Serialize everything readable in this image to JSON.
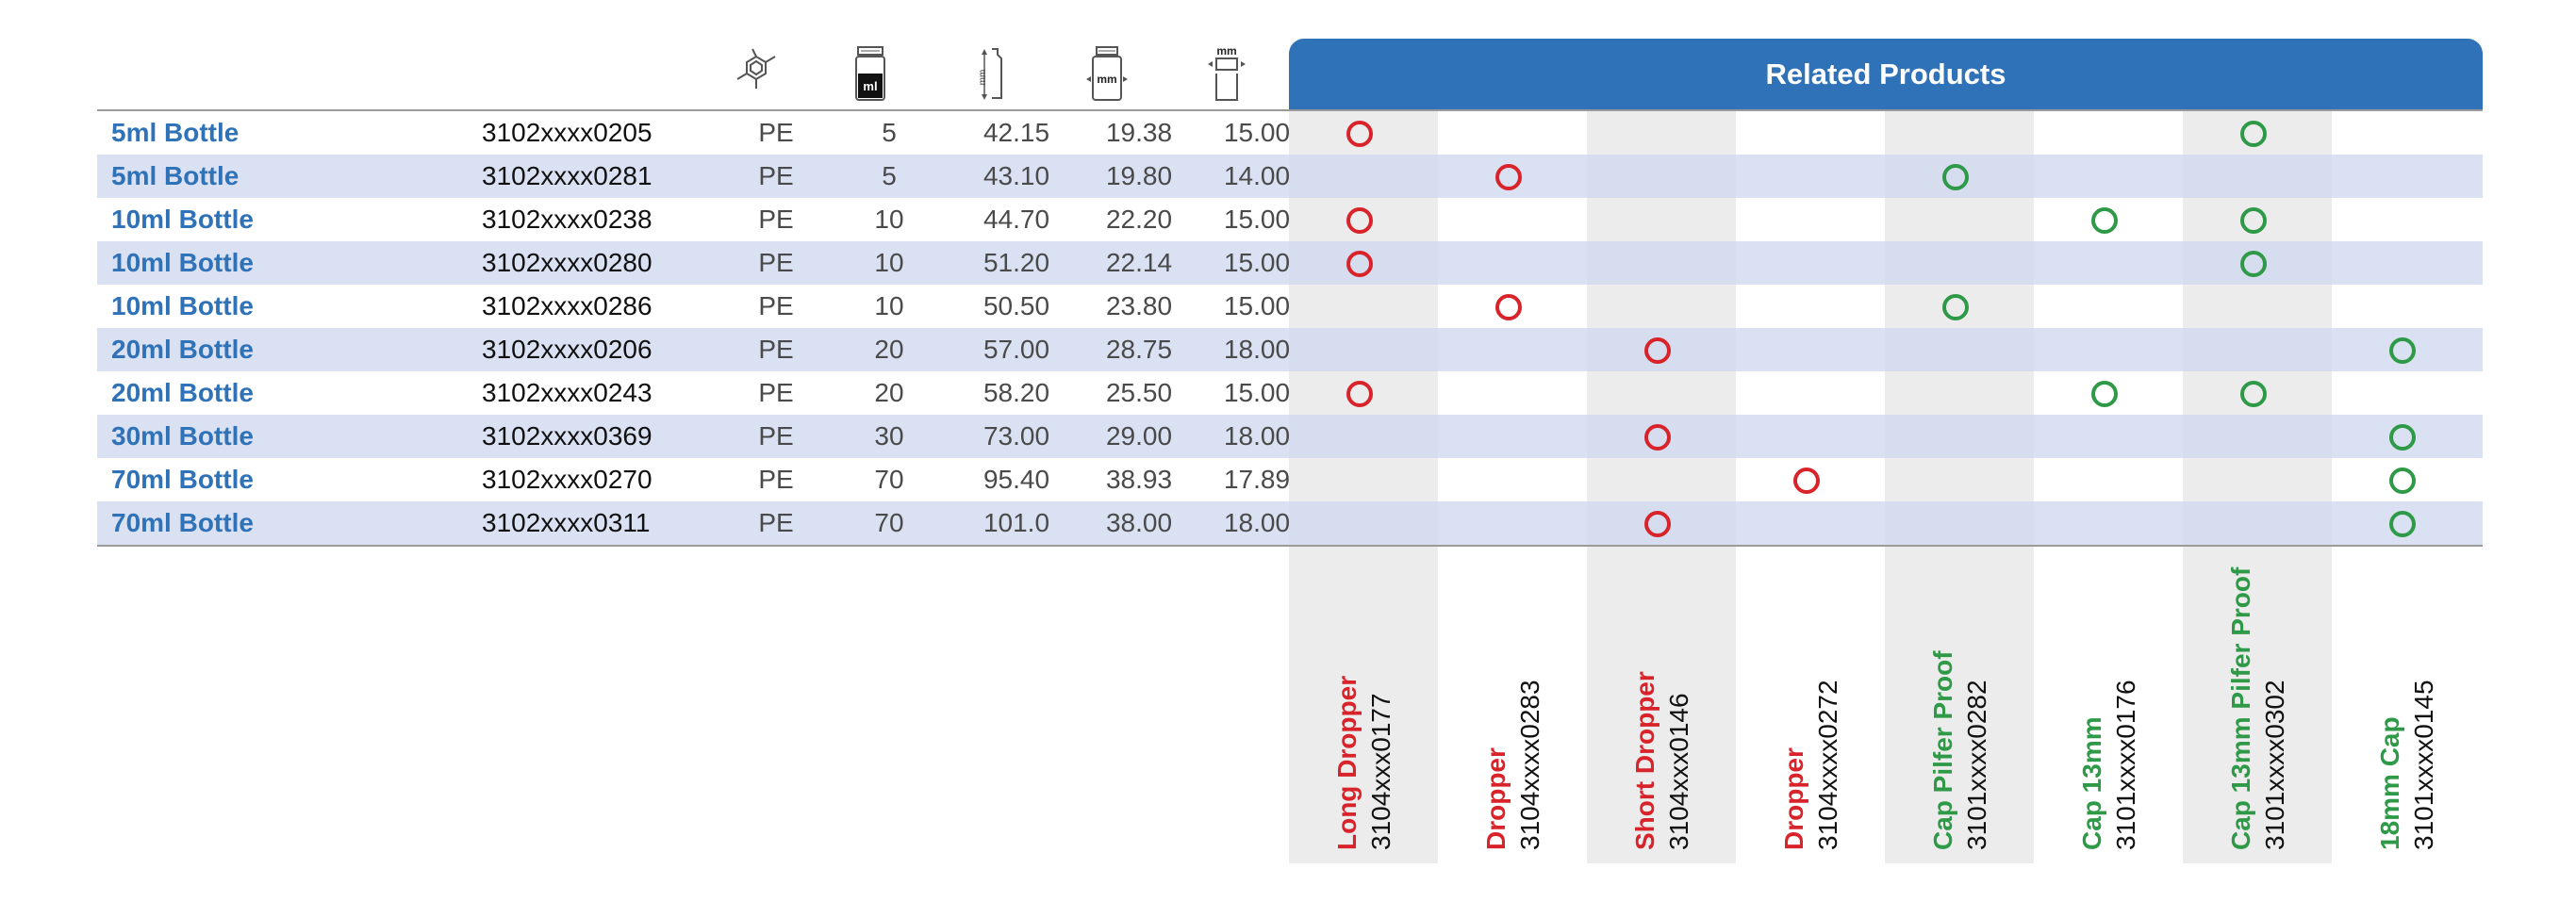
{
  "related_header": "Related Products",
  "header_icons": [
    {
      "icon": "material-molecule-icon"
    },
    {
      "icon": "volume-ml-icon",
      "text": "ml"
    },
    {
      "icon": "height-mm-icon",
      "text": "mm"
    },
    {
      "icon": "diameter-mm-icon",
      "text": "mm"
    },
    {
      "icon": "neck-mm-icon",
      "text": "mm"
    }
  ],
  "related_products": [
    {
      "name": "Long Dropper",
      "code": "3104xxx0177",
      "color": "#d9232a"
    },
    {
      "name": "Dropper",
      "code": "3104xxxx0283",
      "color": "#d9232a"
    },
    {
      "name": "Short Dropper",
      "code": "3104xxx0146",
      "color": "#d9232a"
    },
    {
      "name": "Dropper",
      "code": "3104xxxx0272",
      "color": "#d9232a"
    },
    {
      "name": "Cap Pilfer Proof",
      "code": "3101xxxx0282",
      "color": "#2e9a47"
    },
    {
      "name": "Cap 13mm",
      "code": "3101xxxx0176",
      "color": "#2e9a47"
    },
    {
      "name": "Cap 13mm Pilfer Proof",
      "code": "3101xxxx0302",
      "color": "#2e9a47"
    },
    {
      "name": "18mm Cap",
      "code": "3101xxxx0145",
      "color": "#2e9a47"
    }
  ],
  "rows": [
    {
      "name": "5ml Bottle",
      "code": "3102xxxx0205",
      "material": "PE",
      "volume": "5",
      "height": "42.15",
      "diameter": "19.38",
      "neck": "15.00",
      "related": [
        0,
        6
      ]
    },
    {
      "name": "5ml Bottle",
      "code": "3102xxxx0281",
      "material": "PE",
      "volume": "5",
      "height": "43.10",
      "diameter": "19.80",
      "neck": "14.00",
      "related": [
        1,
        4
      ]
    },
    {
      "name": "10ml Bottle",
      "code": "3102xxxx0238",
      "material": "PE",
      "volume": "10",
      "height": "44.70",
      "diameter": "22.20",
      "neck": "15.00",
      "related": [
        0,
        5,
        6
      ]
    },
    {
      "name": "10ml Bottle",
      "code": "3102xxxx0280",
      "material": "PE",
      "volume": "10",
      "height": "51.20",
      "diameter": "22.14",
      "neck": "15.00",
      "related": [
        0,
        6
      ]
    },
    {
      "name": "10ml Bottle",
      "code": "3102xxxx0286",
      "material": "PE",
      "volume": "10",
      "height": "50.50",
      "diameter": "23.80",
      "neck": "15.00",
      "related": [
        1,
        4
      ]
    },
    {
      "name": "20ml Bottle",
      "code": "3102xxxx0206",
      "material": "PE",
      "volume": "20",
      "height": "57.00",
      "diameter": "28.75",
      "neck": "18.00",
      "related": [
        2,
        7
      ]
    },
    {
      "name": "20ml Bottle",
      "code": "3102xxxx0243",
      "material": "PE",
      "volume": "20",
      "height": "58.20",
      "diameter": "25.50",
      "neck": "15.00",
      "related": [
        0,
        5,
        6
      ]
    },
    {
      "name": "30ml Bottle",
      "code": "3102xxxx0369",
      "material": "PE",
      "volume": "30",
      "height": "73.00",
      "diameter": "29.00",
      "neck": "18.00",
      "related": [
        2,
        7
      ]
    },
    {
      "name": "70ml Bottle",
      "code": "3102xxxx0270",
      "material": "PE",
      "volume": "70",
      "height": "95.40",
      "diameter": "38.93",
      "neck": "17.89",
      "related": [
        3,
        7
      ]
    },
    {
      "name": "70ml Bottle",
      "code": "3102xxxx0311",
      "material": "PE",
      "volume": "70",
      "height": "101.0",
      "diameter": "38.00",
      "neck": "18.00",
      "related": [
        2,
        7
      ]
    }
  ]
}
